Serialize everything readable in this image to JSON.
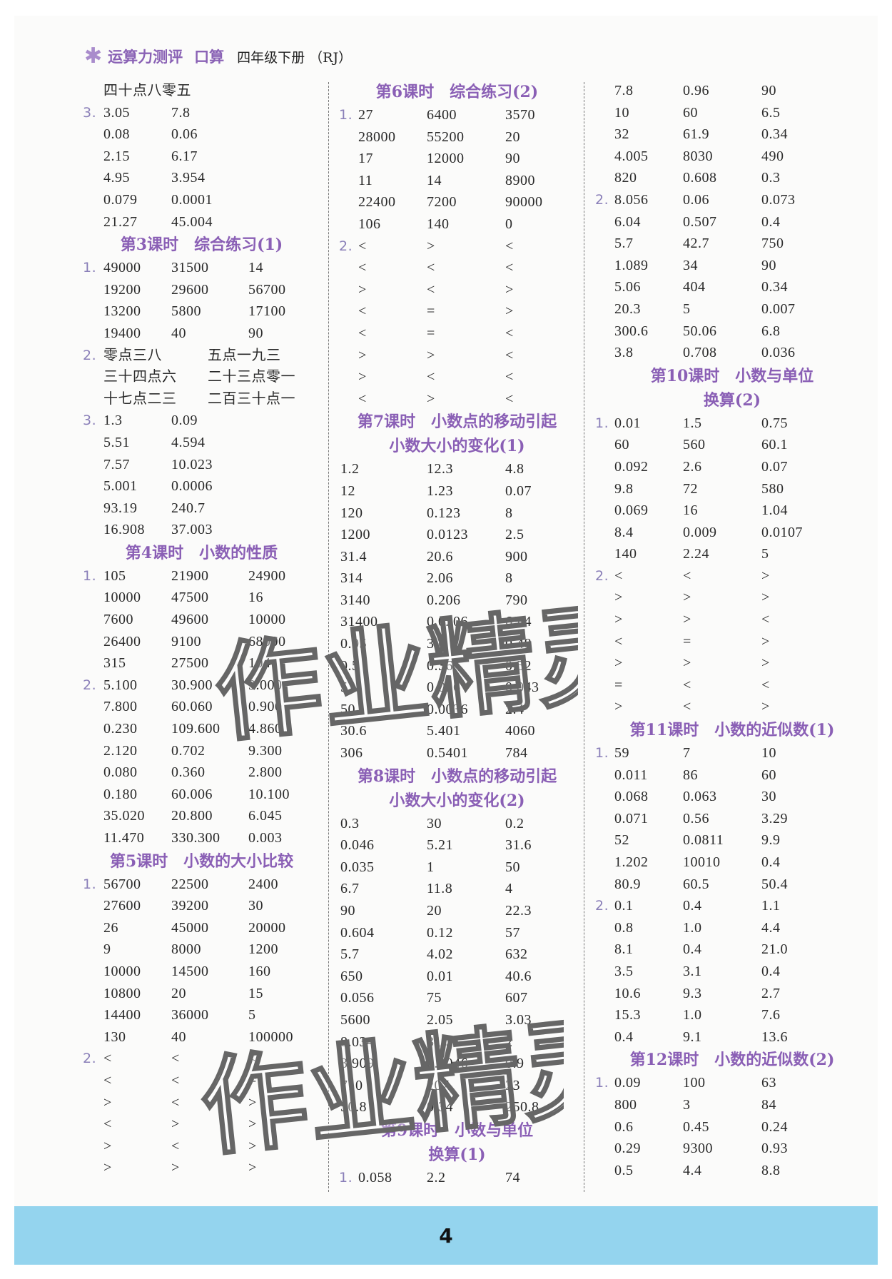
{
  "header": {
    "icon": "asterisk-flower-icon",
    "brand": "运算力测评",
    "brand2": "口算",
    "grade": "四年级下册 （RJ）"
  },
  "colors": {
    "accent": "#8a5fb5",
    "label": "#8a7fb8",
    "footer": "#94d4ee"
  },
  "watermark": "作业精灵",
  "page_number": "4",
  "columns": [
    [
      {
        "n": "",
        "c": [
          "四十点八零五"
        ]
      },
      {
        "n": "3.",
        "c": [
          "3.05",
          "7.8"
        ]
      },
      {
        "n": "",
        "c": [
          "0.08",
          "0.06"
        ]
      },
      {
        "n": "",
        "c": [
          "2.15",
          "6.17"
        ]
      },
      {
        "n": "",
        "c": [
          "4.95",
          "3.954"
        ]
      },
      {
        "n": "",
        "c": [
          "0.079",
          "0.0001"
        ]
      },
      {
        "n": "",
        "c": [
          "21.27",
          "45.004"
        ]
      },
      {
        "h": [
          "第3课时　综合练习(1)"
        ]
      },
      {
        "n": "1.",
        "c": [
          "49000",
          "31500",
          "14"
        ]
      },
      {
        "n": "",
        "c": [
          "19200",
          "29600",
          "56700"
        ]
      },
      {
        "n": "",
        "c": [
          "13200",
          "5800",
          "17100"
        ]
      },
      {
        "n": "",
        "c": [
          "19400",
          "40",
          "90"
        ]
      },
      {
        "n": "2.",
        "c": [
          "零点三八",
          "五点一九三"
        ]
      },
      {
        "n": "",
        "c": [
          "三十四点六",
          "二十三点零一"
        ]
      },
      {
        "n": "",
        "c": [
          "十七点二三",
          "二百三十点一"
        ]
      },
      {
        "n": "3.",
        "c": [
          "1.3",
          "0.09"
        ]
      },
      {
        "n": "",
        "c": [
          "5.51",
          "4.594"
        ]
      },
      {
        "n": "",
        "c": [
          "7.57",
          "10.023"
        ]
      },
      {
        "n": "",
        "c": [
          "5.001",
          "0.0006"
        ]
      },
      {
        "n": "",
        "c": [
          "93.19",
          "240.7"
        ]
      },
      {
        "n": "",
        "c": [
          "16.908",
          "37.003"
        ]
      },
      {
        "h": [
          "第4课时　小数的性质"
        ]
      },
      {
        "n": "1.",
        "c": [
          "105",
          "21900",
          "24900"
        ]
      },
      {
        "n": "",
        "c": [
          "10000",
          "47500",
          "16"
        ]
      },
      {
        "n": "",
        "c": [
          "7600",
          "49600",
          "10000"
        ]
      },
      {
        "n": "",
        "c": [
          "26400",
          "9100",
          "68000"
        ]
      },
      {
        "n": "",
        "c": [
          "315",
          "27500",
          "104"
        ]
      },
      {
        "n": "2.",
        "c": [
          "5.100",
          "30.900",
          "9.000"
        ]
      },
      {
        "n": "",
        "c": [
          "7.800",
          "60.060",
          "0.900"
        ]
      },
      {
        "n": "",
        "c": [
          "0.230",
          "109.600",
          "4.860"
        ]
      },
      {
        "n": "",
        "c": [
          "2.120",
          "0.702",
          "9.300"
        ]
      },
      {
        "n": "",
        "c": [
          "0.080",
          "0.360",
          "2.800"
        ]
      },
      {
        "n": "",
        "c": [
          "0.180",
          "60.006",
          "10.100"
        ]
      },
      {
        "n": "",
        "c": [
          "35.020",
          "20.800",
          "6.045"
        ]
      },
      {
        "n": "",
        "c": [
          "11.470",
          "330.300",
          "0.003"
        ]
      },
      {
        "h": [
          "第5课时　小数的大小比较"
        ]
      },
      {
        "n": "1.",
        "c": [
          "56700",
          "22500",
          "2400"
        ]
      },
      {
        "n": "",
        "c": [
          "27600",
          "39200",
          "30"
        ]
      },
      {
        "n": "",
        "c": [
          "26",
          "45000",
          "20000"
        ]
      },
      {
        "n": "",
        "c": [
          "9",
          "8000",
          "1200"
        ]
      },
      {
        "n": "",
        "c": [
          "10000",
          "14500",
          "160"
        ]
      },
      {
        "n": "",
        "c": [
          "10800",
          "20",
          "15"
        ]
      },
      {
        "n": "",
        "c": [
          "14400",
          "36000",
          "5"
        ]
      },
      {
        "n": "",
        "c": [
          "130",
          "40",
          "100000"
        ]
      },
      {
        "n": "2.",
        "c": [
          "<",
          "<",
          "<"
        ]
      },
      {
        "n": "",
        "c": [
          "<",
          "<",
          "="
        ]
      },
      {
        "n": "",
        "c": [
          ">",
          "<",
          ">"
        ]
      },
      {
        "n": "",
        "c": [
          "<",
          ">",
          ">"
        ]
      },
      {
        "n": "",
        "c": [
          ">",
          "<",
          ">"
        ]
      },
      {
        "n": "",
        "c": [
          ">",
          ">",
          ">"
        ]
      }
    ],
    [
      {
        "h": [
          "第6课时　综合练习(2)"
        ]
      },
      {
        "n": "1.",
        "c": [
          "27",
          "6400",
          "3570"
        ]
      },
      {
        "n": "",
        "c": [
          "28000",
          "55200",
          "20"
        ]
      },
      {
        "n": "",
        "c": [
          "17",
          "12000",
          "90"
        ]
      },
      {
        "n": "",
        "c": [
          "11",
          "14",
          "8900"
        ]
      },
      {
        "n": "",
        "c": [
          "22400",
          "7200",
          "90000"
        ]
      },
      {
        "n": "",
        "c": [
          "106",
          "140",
          "0"
        ]
      },
      {
        "n": "2.",
        "c": [
          "<",
          ">",
          "<"
        ]
      },
      {
        "n": "",
        "c": [
          "<",
          "<",
          "<"
        ]
      },
      {
        "n": "",
        "c": [
          ">",
          "<",
          ">"
        ]
      },
      {
        "n": "",
        "c": [
          "<",
          "=",
          ">"
        ]
      },
      {
        "n": "",
        "c": [
          "<",
          "=",
          "<"
        ]
      },
      {
        "n": "",
        "c": [
          ">",
          ">",
          "<"
        ]
      },
      {
        "n": "",
        "c": [
          ">",
          "<",
          "<"
        ]
      },
      {
        "n": "",
        "c": [
          "<",
          ">",
          "<"
        ]
      },
      {
        "h": [
          "第7课时　小数点的移动引起",
          "小数大小的变化(1)"
        ]
      },
      {
        "c": [
          "1.2",
          "12.3",
          "4.8"
        ]
      },
      {
        "c": [
          "12",
          "1.23",
          "0.07"
        ]
      },
      {
        "c": [
          "120",
          "0.123",
          "8"
        ]
      },
      {
        "c": [
          "1200",
          "0.0123",
          "2.5"
        ]
      },
      {
        "c": [
          "31.4",
          "20.6",
          "900"
        ]
      },
      {
        "c": [
          "314",
          "2.06",
          "8"
        ]
      },
      {
        "c": [
          "3140",
          "0.206",
          "790"
        ]
      },
      {
        "c": [
          "31400",
          "0.0206",
          "69.4"
        ]
      },
      {
        "c": [
          "0.05",
          "3.6",
          "0.48"
        ]
      },
      {
        "c": [
          "0.5",
          "0.36",
          "0.52"
        ]
      },
      {
        "c": [
          "5",
          "0.036",
          "0.043"
        ]
      },
      {
        "c": [
          "50",
          "0.0036",
          "2.4"
        ]
      },
      {
        "c": [
          "30.6",
          "5.401",
          "4060"
        ]
      },
      {
        "c": [
          "306",
          "0.5401",
          "784"
        ]
      },
      {
        "h": [
          "第8课时　小数点的移动引起",
          "小数大小的变化(2)"
        ]
      },
      {
        "c": [
          "0.3",
          "30",
          "0.2"
        ]
      },
      {
        "c": [
          "0.046",
          "5.21",
          "31.6"
        ]
      },
      {
        "c": [
          "0.035",
          "1",
          "50"
        ]
      },
      {
        "c": [
          "6.7",
          "11.8",
          "4"
        ]
      },
      {
        "c": [
          "90",
          "20",
          "22.3"
        ]
      },
      {
        "c": [
          "0.604",
          "0.12",
          "57"
        ]
      },
      {
        "c": [
          "5.7",
          "4.02",
          "632"
        ]
      },
      {
        "c": [
          "650",
          "0.01",
          "40.6"
        ]
      },
      {
        "c": [
          "0.056",
          "75",
          "607"
        ]
      },
      {
        "c": [
          "5600",
          "2.05",
          "3.03"
        ]
      },
      {
        "c": [
          "8.034",
          "31.5",
          "2"
        ]
      },
      {
        "c": [
          "3.909",
          "0.0046",
          "0.9"
        ]
      },
      {
        "c": [
          "710",
          "207",
          "23"
        ]
      },
      {
        "c": [
          "50.8",
          "0.34",
          "250.8"
        ]
      },
      {
        "h": [
          "第9课时　小数与单位",
          "换算(1)"
        ]
      },
      {
        "n": "1.",
        "c": [
          "0.058",
          "2.2",
          "74"
        ]
      }
    ],
    [
      {
        "n": "",
        "c": [
          "7.8",
          "0.96",
          "90"
        ]
      },
      {
        "n": "",
        "c": [
          "10",
          "60",
          "6.5"
        ]
      },
      {
        "n": "",
        "c": [
          "32",
          "61.9",
          "0.34"
        ]
      },
      {
        "n": "",
        "c": [
          "4.005",
          "8030",
          "490"
        ]
      },
      {
        "n": "",
        "c": [
          "820",
          "0.608",
          "0.3"
        ]
      },
      {
        "n": "2.",
        "c": [
          "8.056",
          "0.06",
          "0.073"
        ]
      },
      {
        "n": "",
        "c": [
          "6.04",
          "0.507",
          "0.4"
        ]
      },
      {
        "n": "",
        "c": [
          "5.7",
          "42.7",
          "750"
        ]
      },
      {
        "n": "",
        "c": [
          "1.089",
          "34",
          "90"
        ]
      },
      {
        "n": "",
        "c": [
          "5.06",
          "404",
          "0.34"
        ]
      },
      {
        "n": "",
        "c": [
          "20.3",
          "5",
          "0.007"
        ]
      },
      {
        "n": "",
        "c": [
          "300.6",
          "50.06",
          "6.8"
        ]
      },
      {
        "n": "",
        "c": [
          "3.8",
          "0.708",
          "0.036"
        ]
      },
      {
        "h": [
          "第10课时　小数与单位",
          "换算(2)"
        ]
      },
      {
        "n": "1.",
        "c": [
          "0.01",
          "1.5",
          "0.75"
        ]
      },
      {
        "n": "",
        "c": [
          "60",
          "560",
          "60.1"
        ]
      },
      {
        "n": "",
        "c": [
          "0.092",
          "2.6",
          "0.07"
        ]
      },
      {
        "n": "",
        "c": [
          "9.8",
          "72",
          "580"
        ]
      },
      {
        "n": "",
        "c": [
          "0.069",
          "16",
          "1.04"
        ]
      },
      {
        "n": "",
        "c": [
          "8.4",
          "0.009",
          "0.0107"
        ]
      },
      {
        "n": "",
        "c": [
          "140",
          "2.24",
          "5"
        ]
      },
      {
        "n": "2.",
        "c": [
          "<",
          "<",
          ">"
        ]
      },
      {
        "n": "",
        "c": [
          ">",
          ">",
          ">"
        ]
      },
      {
        "n": "",
        "c": [
          ">",
          ">",
          "<"
        ]
      },
      {
        "n": "",
        "c": [
          "<",
          "=",
          ">"
        ]
      },
      {
        "n": "",
        "c": [
          ">",
          ">",
          ">"
        ]
      },
      {
        "n": "",
        "c": [
          "=",
          "<",
          "<"
        ]
      },
      {
        "n": "",
        "c": [
          ">",
          "<",
          ">"
        ]
      },
      {
        "h": [
          "第11课时　小数的近似数(1)"
        ]
      },
      {
        "n": "1.",
        "c": [
          "59",
          "7",
          "10"
        ]
      },
      {
        "n": "",
        "c": [
          "0.011",
          "86",
          "60"
        ]
      },
      {
        "n": "",
        "c": [
          "0.068",
          "0.063",
          "30"
        ]
      },
      {
        "n": "",
        "c": [
          "0.071",
          "0.56",
          "3.29"
        ]
      },
      {
        "n": "",
        "c": [
          "52",
          "0.0811",
          "9.9"
        ]
      },
      {
        "n": "",
        "c": [
          "1.202",
          "10010",
          "0.4"
        ]
      },
      {
        "n": "",
        "c": [
          "80.9",
          "60.5",
          "50.4"
        ]
      },
      {
        "n": "2.",
        "c": [
          "0.1",
          "0.4",
          "1.1"
        ]
      },
      {
        "n": "",
        "c": [
          "0.8",
          "1.0",
          "4.4"
        ]
      },
      {
        "n": "",
        "c": [
          "8.1",
          "0.4",
          "21.0"
        ]
      },
      {
        "n": "",
        "c": [
          "3.5",
          "3.1",
          "0.4"
        ]
      },
      {
        "n": "",
        "c": [
          "10.6",
          "9.3",
          "2.7"
        ]
      },
      {
        "n": "",
        "c": [
          "15.3",
          "1.0",
          "7.6"
        ]
      },
      {
        "n": "",
        "c": [
          "0.4",
          "9.1",
          "13.6"
        ]
      },
      {
        "h": [
          "第12课时　小数的近似数(2)"
        ]
      },
      {
        "n": "1.",
        "c": [
          "0.09",
          "100",
          "63"
        ]
      },
      {
        "n": "",
        "c": [
          "800",
          "3",
          "84"
        ]
      },
      {
        "n": "",
        "c": [
          "0.6",
          "0.45",
          "0.24"
        ]
      },
      {
        "n": "",
        "c": [
          "0.29",
          "9300",
          "0.93"
        ]
      },
      {
        "n": "",
        "c": [
          "0.5",
          "4.4",
          "8.8"
        ]
      }
    ]
  ]
}
